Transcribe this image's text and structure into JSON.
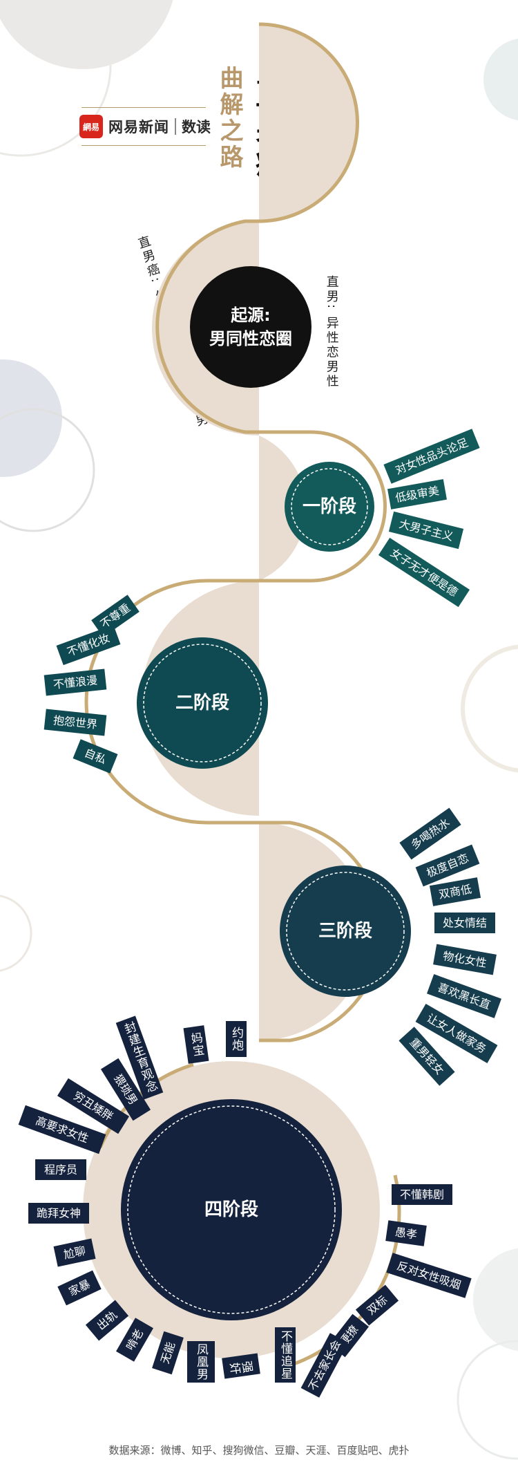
{
  "brand": {
    "logo_text": "網易",
    "name": "网易新闻",
    "sub": "数读"
  },
  "title": {
    "main": "直男癌",
    "sub": "曲解之路",
    "quote_open": "“",
    "quote_close": "”"
  },
  "origin": {
    "center": [
      "起源:",
      "男同性恋圈"
    ],
    "left_note": "直男癌: 怎么也无法掰弯的直男",
    "right_note": "直男: 异性恋男性"
  },
  "stages": {
    "s1": {
      "label": "一阶段",
      "tags": [
        "对女性品头论足",
        "低级审美",
        "大男子主义",
        "女子无才便是德"
      ]
    },
    "s2": {
      "label": "二阶段",
      "tags": [
        "不尊重",
        "不懂化妆",
        "不懂浪漫",
        "抱怨世界",
        "自私"
      ]
    },
    "s3": {
      "label": "三阶段",
      "tags": [
        "多喝热水",
        "极度自恋",
        "双商低",
        "处女情结",
        "物化女性",
        "喜欢黑长直",
        "让女人做家务",
        "重男轻女"
      ]
    },
    "s4": {
      "label": "四阶段",
      "tags_left": [
        "约炮",
        "妈宝",
        "封建生育观念",
        "猥琐男",
        "穷丑矮胖",
        "高要求女性",
        "程序员",
        "跪拜女神",
        "尬聊",
        "家暴",
        "出轨",
        "啃老",
        "无能",
        "凤凰男",
        "强奸",
        "不懂追星"
      ],
      "tags_right": [
        "不懂韩剧",
        "愚孝",
        "反对女性吸烟",
        "双标",
        "硬撩",
        "不去家长会"
      ]
    }
  },
  "colors": {
    "beige": "#e8ddd0",
    "gold": "#c9ab76",
    "teal": "#135a5a",
    "teal_dark": "#0f4a52",
    "navy": "#14223e",
    "black": "#111111"
  },
  "source": "数据来源：微博、知乎、搜狗微信、豆瓣、天涯、百度贴吧、虎扑"
}
